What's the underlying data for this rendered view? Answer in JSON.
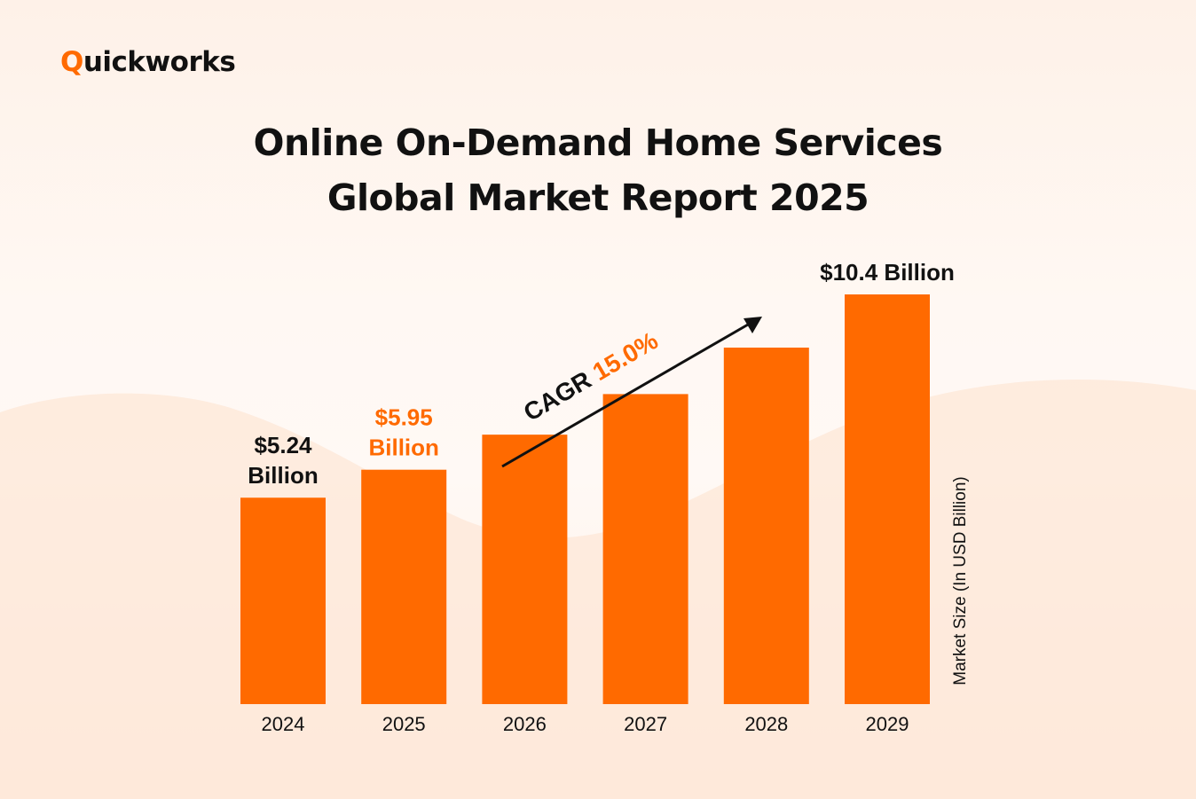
{
  "logo": {
    "first_letter": "Q",
    "rest": "uickworks"
  },
  "title_lines": [
    "Online On-Demand Home Services",
    "Global Market Report 2025"
  ],
  "cagr": {
    "label": "CAGR",
    "value": "15.0%"
  },
  "colors": {
    "accent": "#ff6a00",
    "text": "#111111"
  },
  "chart_data": {
    "type": "bar",
    "categories": [
      "2024",
      "2025",
      "2026",
      "2027",
      "2028",
      "2029"
    ],
    "values": [
      5.24,
      5.95,
      6.84,
      7.87,
      9.05,
      10.4
    ],
    "ylabel": "Market Size (In USD Billion)",
    "ylim": [
      0,
      10.4
    ],
    "annotations": [
      {
        "category": "2024",
        "lines": [
          "$5.24",
          "Billion"
        ],
        "color": "#111111"
      },
      {
        "category": "2025",
        "lines": [
          "$5.95",
          "Billion"
        ],
        "color": "#ff6a00"
      },
      {
        "category": "2029",
        "lines": [
          "$10.4 Billion"
        ],
        "color": "#111111"
      }
    ]
  }
}
